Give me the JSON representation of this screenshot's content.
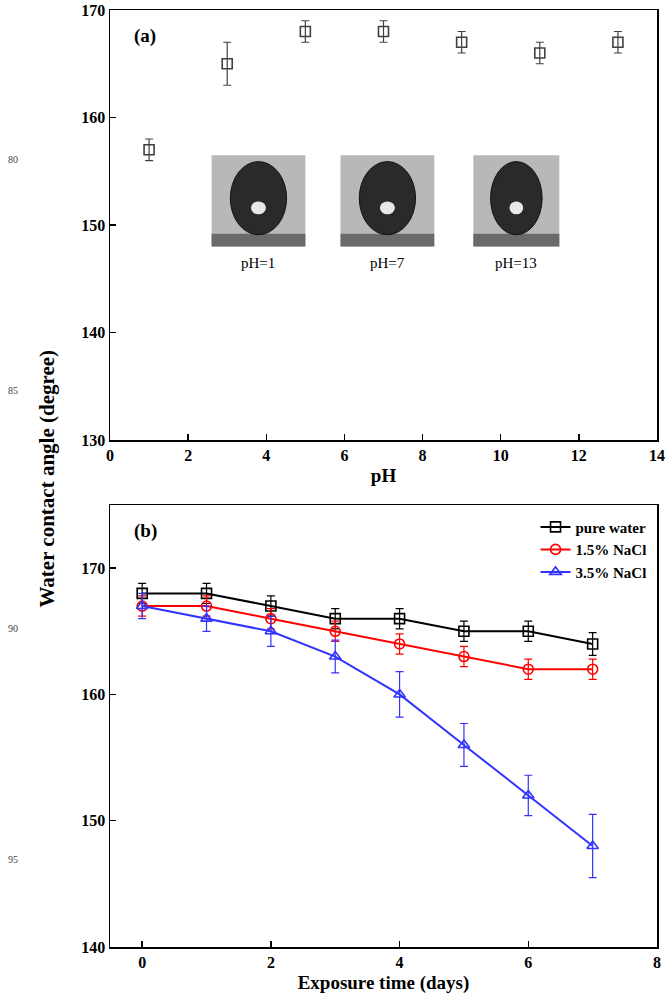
{
  "chart_data": [
    {
      "type": "scatter",
      "panel": "(a)",
      "xlabel": "pH",
      "x": [
        1,
        3,
        5,
        7,
        9,
        11,
        13
      ],
      "series": [
        {
          "color": "#404040",
          "marker": "open square",
          "values": [
            157,
            165,
            168,
            168,
            167,
            166,
            167
          ],
          "errors": [
            1,
            2,
            1,
            1,
            1,
            1,
            1
          ]
        }
      ],
      "xlim": [
        0,
        14
      ],
      "xticks": [
        0,
        2,
        4,
        6,
        8,
        10,
        12,
        14
      ],
      "ylim": [
        130,
        170
      ],
      "yticks": [
        130,
        140,
        150,
        160,
        170
      ],
      "grid": false,
      "annotations": [
        "pH=1",
        "pH=7",
        "pH=13"
      ]
    },
    {
      "type": "line",
      "panel": "(b)",
      "xlabel": "Exposure time (days)",
      "x": [
        0,
        1,
        2,
        3,
        4,
        5,
        6,
        7
      ],
      "series": [
        {
          "name": "pure water",
          "color": "#000000",
          "marker": "open square",
          "line_style": "solid",
          "values": [
            168,
            168,
            167,
            166,
            166,
            165,
            165,
            164
          ],
          "errors": [
            0.8,
            0.8,
            0.8,
            0.8,
            0.8,
            0.8,
            0.8,
            0.9
          ]
        },
        {
          "name": "1.5% NaCl",
          "color": "#ff0000",
          "marker": "open circle",
          "line_style": "solid",
          "values": [
            167,
            167,
            166,
            165,
            164,
            163,
            162,
            162
          ],
          "errors": [
            0.8,
            0.8,
            0.8,
            0.8,
            0.8,
            0.8,
            0.8,
            0.8
          ]
        },
        {
          "name": "3.5% NaCl",
          "color": "#3333ff",
          "marker": "open triangle",
          "line_style": "solid",
          "values": [
            167,
            166,
            165,
            163,
            160,
            156,
            152,
            148
          ],
          "errors": [
            1.0,
            1.0,
            1.2,
            1.3,
            1.8,
            1.7,
            1.6,
            2.5
          ]
        }
      ],
      "xlim": [
        -0.5,
        8
      ],
      "xticks": [
        0,
        2,
        4,
        6,
        8
      ],
      "ylim": [
        140,
        175
      ],
      "yticks": [
        140,
        150,
        160,
        170
      ],
      "grid": false,
      "legend": "top right"
    }
  ],
  "ylabel": "Water contact angle (degree)",
  "margin_line_numbers": [
    80,
    85,
    90,
    95
  ]
}
